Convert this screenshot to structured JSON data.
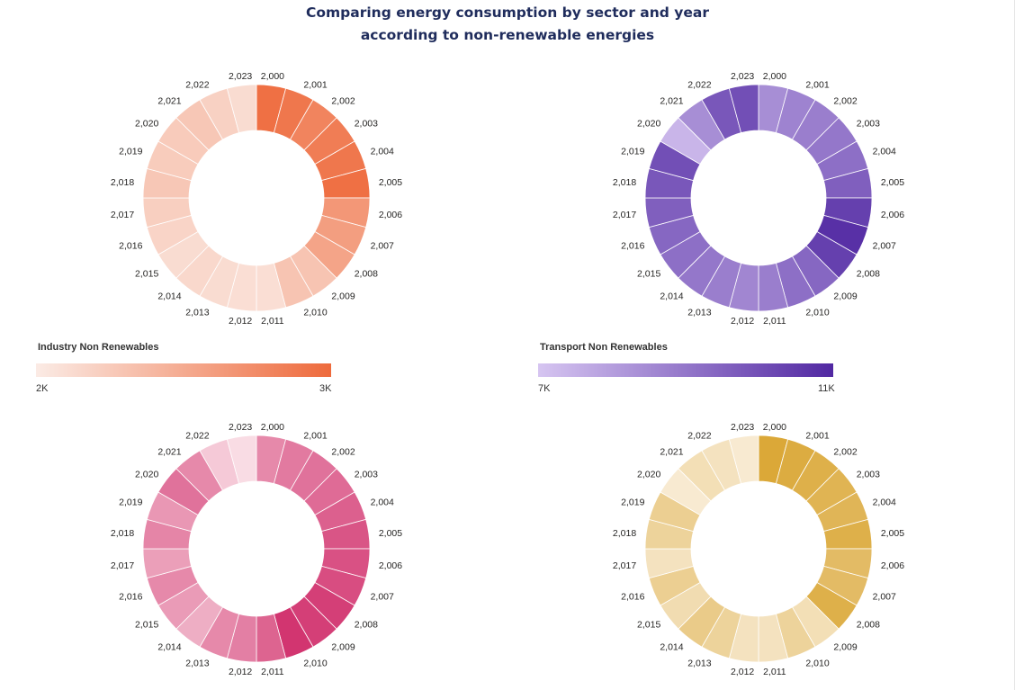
{
  "title_line1": "Comparing energy consumption by sector and year",
  "title_line2": "according to non-renewable energies",
  "charts": [
    {
      "legend_title": "Industry Non Renewables",
      "legend_min": "2K",
      "legend_max": "3K",
      "color_low": "#fbebe5",
      "color_high": "#ee6a3c"
    },
    {
      "legend_title": "Transport Non Renewables",
      "legend_min": "7K",
      "legend_max": "11K",
      "color_low": "#d6c5f1",
      "color_high": "#5128a2"
    },
    {
      "color_low": "#fbe5ea",
      "color_high": "#d02c6a"
    },
    {
      "color_low": "#fbf2e3",
      "color_high": "#d9a42f"
    }
  ],
  "chart_data": [
    {
      "type": "donut",
      "series_name": "Industry Non Renewables",
      "categories": [
        "2,000",
        "2,001",
        "2,002",
        "2,003",
        "2,004",
        "2,005",
        "2,006",
        "2,007",
        "2,008",
        "2,009",
        "2,010",
        "2,011",
        "2,012",
        "2,013",
        "2,014",
        "2,015",
        "2,016",
        "2,017",
        "2,018",
        "2,019",
        "2,020",
        "2,021",
        "2,022",
        "2,023"
      ],
      "color_values": [
        0.95,
        0.9,
        0.8,
        0.85,
        0.9,
        0.95,
        0.65,
        0.6,
        0.55,
        0.3,
        0.3,
        0.1,
        0.1,
        0.12,
        0.15,
        0.12,
        0.18,
        0.22,
        0.28,
        0.24,
        0.25,
        0.28,
        0.2,
        0.12
      ],
      "color_scale": {
        "min": "2K",
        "max": "3K"
      },
      "legend": "Industry Non Renewables"
    },
    {
      "type": "donut",
      "series_name": "Transport Non Renewables",
      "categories": [
        "2,000",
        "2,001",
        "2,002",
        "2,003",
        "2,004",
        "2,005",
        "2,006",
        "2,007",
        "2,008",
        "2,009",
        "2,010",
        "2,011",
        "2,012",
        "2,013",
        "2,014",
        "2,015",
        "2,016",
        "2,017",
        "2,018",
        "2,019",
        "2,020",
        "2,021",
        "2,022",
        "2,023"
      ],
      "color_values": [
        0.35,
        0.42,
        0.45,
        0.5,
        0.55,
        0.65,
        0.85,
        0.95,
        0.85,
        0.6,
        0.55,
        0.45,
        0.4,
        0.45,
        0.5,
        0.55,
        0.6,
        0.65,
        0.7,
        0.75,
        0.1,
        0.35,
        0.7,
        0.75
      ],
      "color_scale": {
        "min": "7K",
        "max": "11K"
      },
      "legend": "Transport Non Renewables"
    },
    {
      "type": "donut",
      "categories": [
        "2,000",
        "2,001",
        "2,002",
        "2,003",
        "2,004",
        "2,005",
        "2,006",
        "2,007",
        "2,008",
        "2,009",
        "2,010",
        "2,011",
        "2,012",
        "2,013",
        "2,014",
        "2,015",
        "2,016",
        "2,017",
        "2,018",
        "2,019",
        "2,020",
        "2,021",
        "2,022",
        "2,023"
      ],
      "color_values": [
        0.5,
        0.58,
        0.62,
        0.66,
        0.72,
        0.78,
        0.8,
        0.82,
        0.9,
        0.9,
        0.95,
        0.7,
        0.55,
        0.5,
        0.3,
        0.4,
        0.5,
        0.38,
        0.52,
        0.42,
        0.62,
        0.5,
        0.15,
        0.05
      ]
    },
    {
      "type": "donut",
      "categories": [
        "2,000",
        "2,001",
        "2,002",
        "2,003",
        "2,004",
        "2,005",
        "2,006",
        "2,007",
        "2,008",
        "2,009",
        "2,010",
        "2,011",
        "2,012",
        "2,013",
        "2,014",
        "2,015",
        "2,016",
        "2,017",
        "2,018",
        "2,019",
        "2,020",
        "2,021",
        "2,022",
        "2,023"
      ],
      "color_values": [
        0.95,
        0.9,
        0.85,
        0.8,
        0.78,
        0.85,
        0.7,
        0.7,
        0.85,
        0.25,
        0.4,
        0.2,
        0.2,
        0.4,
        0.5,
        0.28,
        0.45,
        0.2,
        0.4,
        0.45,
        0.1,
        0.25,
        0.2,
        0.1
      ]
    }
  ]
}
